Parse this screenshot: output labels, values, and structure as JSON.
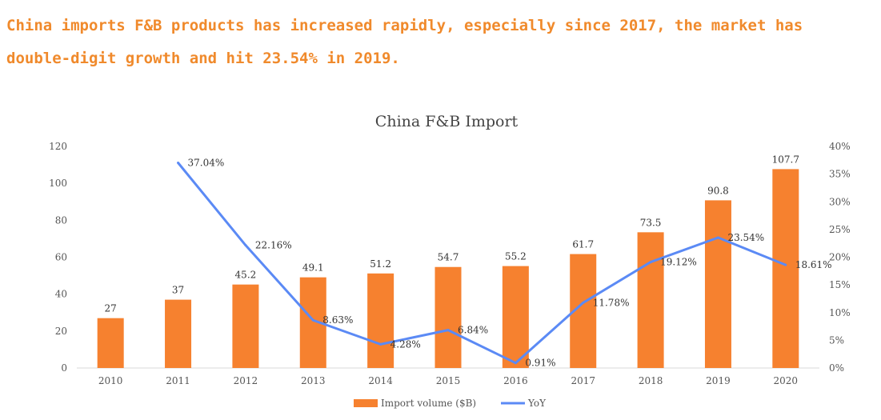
{
  "headline": "China imports F&B products has increased rapidly, especially since 2017, the market has double-digit growth and hit 23.54% in 2019.",
  "colors": {
    "bar": "#f6812f",
    "line": "#5b8af5",
    "headline": "#f08a2c"
  },
  "chart_data": {
    "type": "bar",
    "title": "China F&B Import",
    "xlabel": "",
    "ylabel": "",
    "categories": [
      "2010",
      "2011",
      "2012",
      "2013",
      "2014",
      "2015",
      "2016",
      "2017",
      "2018",
      "2019",
      "2020"
    ],
    "series": [
      {
        "name": "Import volume ($B)",
        "type": "bar",
        "axis": "left",
        "values": [
          27,
          37,
          45.2,
          49.1,
          51.2,
          54.7,
          55.2,
          61.7,
          73.5,
          90.8,
          107.7
        ],
        "labels": [
          "27",
          "37",
          "45.2",
          "49.1",
          "51.2",
          "54.7",
          "55.2",
          "61.7",
          "73.5",
          "90.8",
          "107.7"
        ]
      },
      {
        "name": "YoY",
        "type": "line",
        "axis": "right",
        "values": [
          null,
          37.04,
          22.16,
          8.63,
          4.28,
          6.84,
          0.91,
          11.78,
          19.12,
          23.54,
          18.61
        ],
        "labels": [
          "",
          "37.04%",
          "22.16%",
          "8.63%",
          "4.28%",
          "6.84%",
          "0.91%",
          "11.78%",
          "19.12%",
          "23.54%",
          "18.61%"
        ]
      }
    ],
    "ylim": [
      0,
      120
    ],
    "y_ticks": [
      "0",
      "20",
      "40",
      "60",
      "80",
      "100",
      "120"
    ],
    "y2lim": [
      0,
      40
    ],
    "y2_ticks": [
      "0%",
      "5%",
      "10%",
      "15%",
      "20%",
      "25%",
      "30%",
      "35%",
      "40%"
    ],
    "grid": false,
    "legend": "bottom-center"
  }
}
